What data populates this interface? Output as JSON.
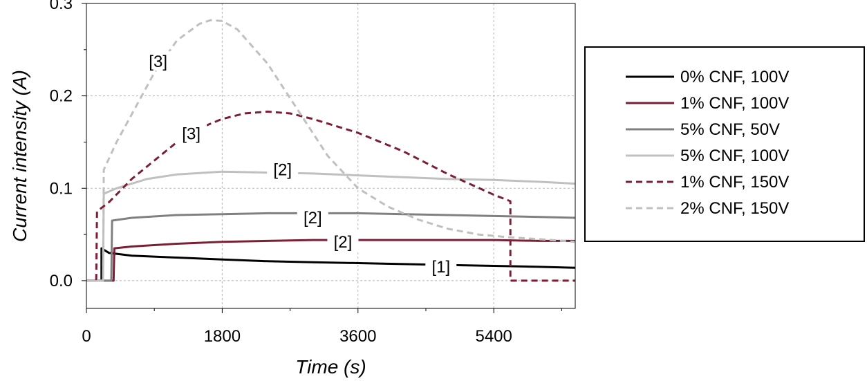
{
  "chart_data": {
    "type": "line",
    "xlabel": "Time (s)",
    "ylabel": "Current intensity (A)",
    "xlim": [
      0,
      6480
    ],
    "ylim": [
      -0.03,
      0.3
    ],
    "xticks": [
      0,
      1800,
      3600,
      5400
    ],
    "yticks": [
      0.0,
      0.1,
      0.2,
      0.3
    ],
    "xtick_labels": [
      "0",
      "1800",
      "3600",
      "5400"
    ],
    "ytick_labels": [
      "0.0",
      "0.1",
      "0.2",
      "0.3"
    ],
    "grid": true,
    "legend_position": "right",
    "series": [
      {
        "name": "0% CNF, 100V",
        "color": "#000000",
        "dash": "solid",
        "points": [
          [
            0,
            0
          ],
          [
            200,
            0
          ],
          [
            200,
            0.035
          ],
          [
            300,
            0.03
          ],
          [
            600,
            0.027
          ],
          [
            1200,
            0.025
          ],
          [
            1800,
            0.023
          ],
          [
            2400,
            0.021
          ],
          [
            3000,
            0.02
          ],
          [
            3600,
            0.019
          ],
          [
            4200,
            0.018
          ],
          [
            4800,
            0.017
          ],
          [
            5400,
            0.016
          ],
          [
            6000,
            0.015
          ],
          [
            6480,
            0.014
          ]
        ]
      },
      {
        "name": "1% CNF, 100V",
        "color": "#7b1f35",
        "dash": "solid",
        "points": [
          [
            0,
            0
          ],
          [
            360,
            0
          ],
          [
            370,
            0.035
          ],
          [
            600,
            0.037
          ],
          [
            1200,
            0.04
          ],
          [
            1800,
            0.042
          ],
          [
            2400,
            0.043
          ],
          [
            3000,
            0.044
          ],
          [
            3600,
            0.044
          ],
          [
            4200,
            0.044
          ],
          [
            4800,
            0.044
          ],
          [
            5400,
            0.044
          ],
          [
            6000,
            0.043
          ],
          [
            6480,
            0.043
          ]
        ]
      },
      {
        "name": "5% CNF, 50V",
        "color": "#808080",
        "dash": "solid",
        "points": [
          [
            0,
            0
          ],
          [
            330,
            0
          ],
          [
            340,
            0.065
          ],
          [
            600,
            0.068
          ],
          [
            1200,
            0.071
          ],
          [
            1800,
            0.072
          ],
          [
            2400,
            0.073
          ],
          [
            3000,
            0.073
          ],
          [
            3600,
            0.073
          ],
          [
            4200,
            0.072
          ],
          [
            4800,
            0.071
          ],
          [
            5400,
            0.07
          ],
          [
            6000,
            0.069
          ],
          [
            6480,
            0.068
          ]
        ]
      },
      {
        "name": "5% CNF, 100V",
        "color": "#c0c0c0",
        "dash": "solid",
        "points": [
          [
            0,
            0
          ],
          [
            220,
            0
          ],
          [
            230,
            0.094
          ],
          [
            400,
            0.1
          ],
          [
            800,
            0.11
          ],
          [
            1200,
            0.115
          ],
          [
            1800,
            0.118
          ],
          [
            2400,
            0.117
          ],
          [
            3000,
            0.116
          ],
          [
            3600,
            0.114
          ],
          [
            4200,
            0.112
          ],
          [
            4800,
            0.11
          ],
          [
            5400,
            0.109
          ],
          [
            6000,
            0.107
          ],
          [
            6480,
            0.105
          ]
        ]
      },
      {
        "name": "1% CNF, 150V",
        "color": "#7b1f35",
        "dash": "dashed",
        "points": [
          [
            0,
            0
          ],
          [
            130,
            0
          ],
          [
            140,
            0.075
          ],
          [
            300,
            0.085
          ],
          [
            600,
            0.11
          ],
          [
            900,
            0.13
          ],
          [
            1200,
            0.15
          ],
          [
            1500,
            0.165
          ],
          [
            1800,
            0.175
          ],
          [
            2100,
            0.181
          ],
          [
            2400,
            0.183
          ],
          [
            2700,
            0.181
          ],
          [
            3000,
            0.175
          ],
          [
            3600,
            0.16
          ],
          [
            4200,
            0.14
          ],
          [
            4800,
            0.115
          ],
          [
            5400,
            0.093
          ],
          [
            5620,
            0.086
          ],
          [
            5620,
            0
          ],
          [
            6480,
            0
          ]
        ]
      },
      {
        "name": "2% CNF, 150V",
        "color": "#c0c0c0",
        "dash": "dashed",
        "points": [
          [
            0,
            0
          ],
          [
            220,
            0
          ],
          [
            230,
            0.12
          ],
          [
            400,
            0.15
          ],
          [
            600,
            0.18
          ],
          [
            900,
            0.225
          ],
          [
            1200,
            0.26
          ],
          [
            1500,
            0.278
          ],
          [
            1650,
            0.282
          ],
          [
            1800,
            0.281
          ],
          [
            2000,
            0.272
          ],
          [
            2400,
            0.235
          ],
          [
            2800,
            0.185
          ],
          [
            3200,
            0.135
          ],
          [
            3600,
            0.1
          ],
          [
            4000,
            0.08
          ],
          [
            4400,
            0.066
          ],
          [
            4800,
            0.056
          ],
          [
            5200,
            0.05
          ],
          [
            5600,
            0.047
          ],
          [
            6000,
            0.045
          ],
          [
            6480,
            0.042
          ]
        ]
      }
    ],
    "annotations": [
      {
        "text": "[3]",
        "x": 950,
        "y": 0.237
      },
      {
        "text": "[3]",
        "x": 1390,
        "y": 0.159
      },
      {
        "text": "[2]",
        "x": 2600,
        "y": 0.12
      },
      {
        "text": "[2]",
        "x": 3000,
        "y": 0.068
      },
      {
        "text": "[2]",
        "x": 3400,
        "y": 0.042
      },
      {
        "text": "[1]",
        "x": 4700,
        "y": 0.015
      }
    ]
  }
}
